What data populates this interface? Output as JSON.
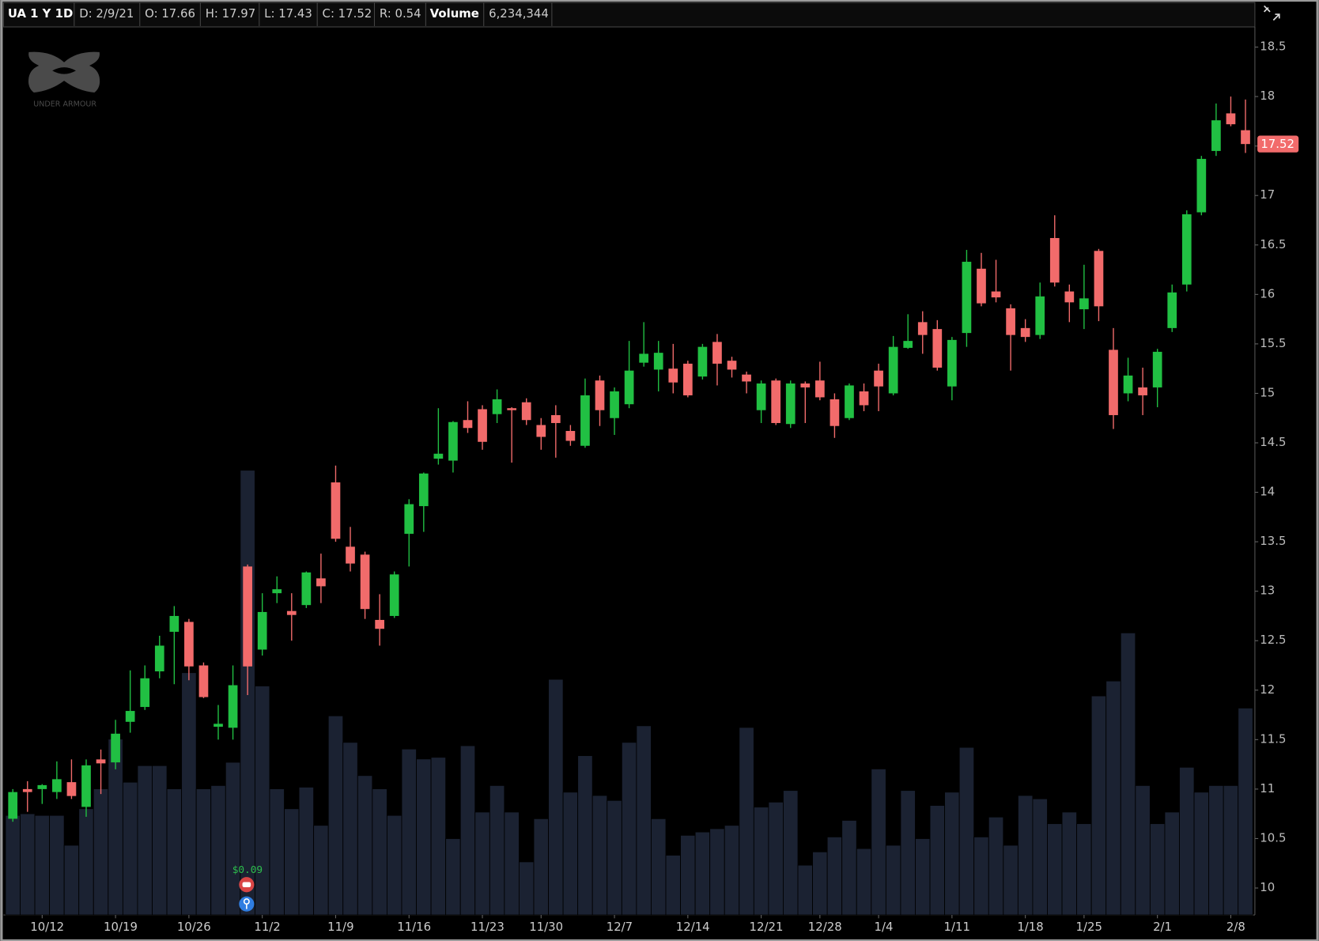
{
  "header": [
    "UA 1 Y 1D",
    "D: 2/9/21",
    "O: 17.66",
    "H: 17.97",
    "L: 17.43",
    "C: 17.52",
    "R: 0.54",
    "Volume",
    "6,234,344"
  ],
  "logo_text": "UNDER ARMOUR",
  "chart_data": {
    "type": "candlestick",
    "categories": [
      null,
      null,
      "10/12",
      null,
      null,
      null,
      null,
      "10/19",
      null,
      null,
      null,
      null,
      "10/26",
      null,
      null,
      null,
      null,
      "11/2",
      null,
      null,
      null,
      null,
      "11/9",
      null,
      null,
      null,
      null,
      "11/16",
      null,
      null,
      null,
      null,
      "11/23",
      null,
      null,
      null,
      "11/30",
      null,
      null,
      null,
      null,
      "12/7",
      null,
      null,
      null,
      null,
      "12/14",
      null,
      null,
      null,
      null,
      "12/21",
      null,
      null,
      null,
      "12/28",
      null,
      null,
      null,
      "1/4",
      null,
      null,
      null,
      null,
      "1/11",
      null,
      null,
      null,
      null,
      "1/18",
      null,
      null,
      null,
      "1/25",
      null,
      null,
      null,
      null,
      "2/1",
      null,
      null,
      null,
      null,
      "2/8",
      null
    ],
    "open": [
      10.7,
      11.0,
      11.0,
      10.97,
      11.07,
      10.82,
      11.3,
      11.27,
      11.68,
      11.83,
      12.19,
      12.59,
      12.69,
      12.25,
      11.63,
      11.62,
      13.25,
      12.41,
      12.98,
      12.8,
      12.86,
      13.13,
      14.1,
      13.45,
      13.37,
      12.71,
      12.75,
      13.58,
      13.86,
      14.34,
      14.32,
      14.73,
      14.84,
      14.79,
      14.85,
      14.91,
      14.68,
      14.78,
      14.62,
      14.47,
      15.13,
      14.75,
      14.89,
      15.31,
      15.24,
      15.25,
      15.3,
      15.17,
      15.52,
      15.33,
      15.19,
      14.83,
      15.13,
      14.69,
      15.1,
      15.13,
      14.94,
      14.75,
      15.02,
      15.23,
      15.0,
      15.46,
      15.72,
      15.65,
      15.07,
      15.61,
      16.26,
      16.03,
      15.86,
      15.66,
      15.59,
      16.57,
      16.03,
      15.85,
      16.44,
      15.44,
      15.0,
      15.06,
      15.06,
      15.66,
      16.1,
      16.83,
      17.45,
      17.83,
      17.66
    ],
    "high": [
      11.0,
      11.08,
      11.05,
      11.28,
      11.3,
      11.3,
      11.4,
      11.7,
      12.2,
      12.25,
      12.55,
      12.85,
      12.72,
      12.28,
      11.85,
      12.25,
      13.27,
      12.98,
      13.15,
      12.98,
      13.2,
      13.38,
      14.27,
      13.65,
      13.4,
      12.97,
      13.2,
      13.93,
      14.2,
      14.85,
      14.72,
      14.92,
      14.88,
      15.04,
      14.86,
      14.95,
      14.75,
      14.88,
      14.68,
      15.15,
      15.18,
      15.06,
      15.53,
      15.72,
      15.53,
      15.5,
      15.33,
      15.5,
      15.6,
      15.37,
      15.22,
      15.13,
      15.15,
      15.13,
      15.12,
      15.32,
      15.0,
      15.1,
      15.1,
      15.3,
      15.58,
      15.8,
      15.83,
      15.74,
      15.57,
      16.45,
      16.42,
      16.35,
      15.9,
      15.75,
      16.12,
      16.8,
      16.1,
      16.3,
      16.46,
      15.66,
      15.36,
      15.26,
      15.45,
      16.1,
      16.85,
      17.4,
      17.93,
      18.0,
      17.97
    ],
    "low": [
      10.67,
      10.77,
      10.85,
      10.9,
      10.9,
      10.72,
      10.95,
      11.2,
      11.57,
      11.8,
      12.12,
      12.06,
      12.1,
      11.92,
      11.5,
      11.5,
      11.95,
      12.35,
      12.88,
      12.5,
      12.83,
      12.88,
      13.5,
      13.2,
      12.72,
      12.45,
      12.73,
      13.25,
      13.6,
      14.28,
      14.2,
      14.6,
      14.43,
      14.7,
      14.3,
      14.68,
      14.43,
      14.35,
      14.47,
      14.45,
      14.67,
      14.58,
      14.85,
      15.27,
      15.02,
      15.0,
      14.96,
      15.14,
      15.08,
      15.16,
      15.0,
      14.7,
      14.68,
      14.65,
      14.7,
      14.93,
      14.55,
      14.73,
      14.82,
      14.82,
      14.98,
      15.45,
      15.4,
      15.23,
      14.93,
      15.47,
      15.88,
      15.92,
      15.23,
      15.52,
      15.55,
      16.08,
      15.72,
      15.65,
      15.73,
      14.64,
      14.92,
      14.78,
      14.86,
      15.62,
      16.03,
      16.8,
      17.4,
      17.7,
      17.43
    ],
    "close": [
      10.97,
      10.97,
      11.04,
      11.1,
      10.93,
      11.24,
      11.26,
      11.56,
      11.79,
      12.12,
      12.45,
      12.75,
      12.24,
      11.93,
      11.66,
      12.05,
      12.24,
      12.79,
      13.02,
      12.76,
      13.19,
      13.05,
      13.53,
      13.28,
      12.82,
      12.62,
      13.17,
      13.88,
      14.19,
      14.39,
      14.71,
      14.65,
      14.51,
      14.94,
      14.83,
      14.73,
      14.56,
      14.7,
      14.52,
      14.98,
      14.83,
      15.02,
      15.23,
      15.4,
      15.41,
      15.11,
      14.98,
      15.47,
      15.3,
      15.24,
      15.12,
      15.1,
      14.7,
      15.1,
      15.06,
      14.96,
      14.67,
      15.08,
      14.88,
      15.07,
      15.47,
      15.53,
      15.59,
      15.26,
      15.54,
      16.33,
      15.91,
      15.97,
      15.59,
      15.57,
      15.98,
      16.12,
      15.92,
      15.96,
      15.88,
      14.78,
      15.18,
      14.98,
      15.42,
      16.02,
      16.81,
      17.37,
      17.76,
      17.72,
      17.52
    ],
    "volume": [
      3000000,
      3050000,
      3000000,
      3000000,
      2100000,
      3200000,
      3800000,
      5300000,
      4000000,
      4500000,
      4500000,
      3800000,
      7300000,
      3800000,
      3900000,
      4600000,
      13400000,
      6900000,
      3800000,
      3200000,
      3850000,
      2700000,
      6000000,
      5200000,
      4200000,
      3800000,
      3000000,
      5000000,
      4700000,
      4750000,
      2300000,
      5100000,
      3100000,
      3900000,
      3100000,
      1600000,
      2900000,
      7100000,
      3700000,
      4800000,
      3600000,
      3450000,
      5200000,
      5700000,
      2900000,
      1800000,
      2400000,
      2500000,
      2600000,
      2700000,
      5650000,
      3250000,
      3400000,
      3750000,
      1500000,
      1900000,
      2350000,
      2850000,
      2000000,
      4400000,
      2100000,
      3750000,
      2300000,
      3300000,
      3700000,
      5050000,
      2350000,
      2950000,
      2100000,
      3600000,
      3500000,
      2750000,
      3100000,
      2750000,
      6600000,
      7050000,
      8500000,
      3900000,
      2750000,
      3100000,
      4450000,
      3700000,
      3900000,
      3900000,
      6234344
    ],
    "up_color": "#21c043",
    "down_color": "#f26b6b",
    "volume_color": "#1b2232",
    "ylim": [
      9.728,
      18.704
    ],
    "yticks": [
      10,
      10.5,
      11,
      11.5,
      12,
      12.5,
      13,
      13.5,
      14,
      14.5,
      15,
      15.5,
      16,
      16.5,
      17,
      17.5,
      18,
      18.5
    ],
    "y2lim": [
      0,
      26760000
    ],
    "last_price_label": "17.52",
    "annotation": "$0.09"
  }
}
